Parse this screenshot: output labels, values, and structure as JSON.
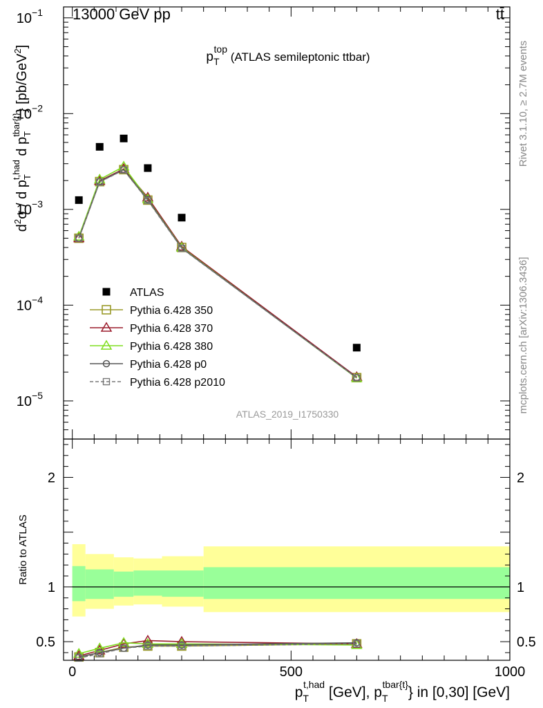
{
  "header": {
    "energy_label": "13000 GeV pp",
    "process_label": "tt̄"
  },
  "side_labels": {
    "rivet": "Rivet 3.1.10, ≥ 2.7M events",
    "mcplots": "mcplots.cern.ch [arXiv:1306.3436]"
  },
  "chart_data": [
    {
      "type": "scatter",
      "panel": "main",
      "title_main": "p",
      "title_sub": "T",
      "title_sup": "top",
      "title_rest": " (ATLAS semileptonic ttbar)",
      "analysis_id": "ATLAS_2019_I1750330",
      "ylabel": "d²σ / d p_T^{t,had} d p_T^{tbar{t}} [pb/GeV²]",
      "yscale": "log",
      "ylim": [
        4e-06,
        0.13
      ],
      "xlim": [
        -20,
        1000
      ],
      "ytick_labels": [
        {
          "value": 1e-05,
          "mant": "10",
          "exp": "−5"
        },
        {
          "value": 0.0001,
          "mant": "10",
          "exp": "−4"
        },
        {
          "value": 0.001,
          "mant": "10",
          "exp": "−3"
        },
        {
          "value": 0.01,
          "mant": "10",
          "exp": "−2"
        },
        {
          "value": 0.1,
          "mant": "10",
          "exp": "−1"
        }
      ],
      "legend_placement": "center-left",
      "x": [
        15,
        62.5,
        117.5,
        172.5,
        250,
        650
      ],
      "series": [
        {
          "name": "ATLAS",
          "color": "#000000",
          "marker": "filled-square",
          "values": [
            0.00125,
            0.0045,
            0.0055,
            0.0027,
            0.00082,
            3.6e-05
          ]
        },
        {
          "name": "Pythia 6.428 350",
          "color": "#9a9a2a",
          "marker": "open-square",
          "values": [
            0.0005,
            0.00195,
            0.0026,
            0.00125,
            0.0004,
            1.75e-05
          ]
        },
        {
          "name": "Pythia 6.428 370",
          "color": "#9b1c2c",
          "marker": "open-triangle",
          "values": [
            0.0005,
            0.00198,
            0.00265,
            0.00133,
            0.00041,
            1.78e-05
          ]
        },
        {
          "name": "Pythia 6.428 380",
          "color": "#7fdd1e",
          "marker": "open-triangle",
          "values": [
            0.00052,
            0.00205,
            0.0028,
            0.00128,
            0.0004,
            1.73e-05
          ]
        },
        {
          "name": "Pythia 6.428 p0",
          "color": "#555555",
          "marker": "open-circle",
          "values": [
            0.0005,
            0.00195,
            0.0026,
            0.00127,
            0.000395,
            1.75e-05
          ]
        },
        {
          "name": "Pythia 6.428 p2010",
          "color": "#777777",
          "marker": "open-square-small",
          "dashed": true,
          "values": [
            0.0005,
            0.00193,
            0.00258,
            0.00124,
            0.000392,
            1.74e-05
          ]
        }
      ]
    },
    {
      "type": "line",
      "panel": "ratio",
      "ylabel": "Ratio to ATLAS",
      "xlabel": "p_T^{t,had} [GeV], p_T^{tbar{t}} in [0,30] [GeV]",
      "xlim": [
        -20,
        1000
      ],
      "ylim": [
        0.33,
        2.35
      ],
      "xtick_labels": [
        {
          "value": 0,
          "label": "0"
        },
        {
          "value": 500,
          "label": "500"
        },
        {
          "value": 1000,
          "label": "1000"
        }
      ],
      "ytick_labels": [
        {
          "value": 0.5,
          "label": "0.5"
        },
        {
          "value": 1,
          "label": "1"
        },
        {
          "value": 2,
          "label": "2"
        }
      ],
      "band_edges": [
        0,
        30,
        95,
        140,
        205,
        300,
        1000
      ],
      "band_stat_low": [
        0.87,
        0.89,
        0.91,
        0.92,
        0.91,
        0.89
      ],
      "band_stat_high": [
        1.19,
        1.16,
        1.14,
        1.15,
        1.15,
        1.18
      ],
      "band_total_low": [
        0.73,
        0.8,
        0.83,
        0.84,
        0.82,
        0.77
      ],
      "band_total_high": [
        1.39,
        1.3,
        1.27,
        1.26,
        1.28,
        1.37
      ],
      "band_stat_color": "#99ff99",
      "band_total_color": "#ffff99",
      "x": [
        15,
        62.5,
        117.5,
        172.5,
        250,
        650
      ],
      "series": [
        {
          "name": "Pythia 6.428 350",
          "values": [
            0.36,
            0.4,
            0.45,
            0.46,
            0.46,
            0.48
          ]
        },
        {
          "name": "Pythia 6.428 370",
          "values": [
            0.37,
            0.42,
            0.48,
            0.51,
            0.5,
            0.48
          ]
        },
        {
          "name": "Pythia 6.428 380",
          "values": [
            0.39,
            0.44,
            0.49,
            0.48,
            0.48,
            0.47
          ]
        },
        {
          "name": "Pythia 6.428 p0",
          "values": [
            0.36,
            0.4,
            0.44,
            0.47,
            0.47,
            0.49
          ]
        },
        {
          "name": "Pythia 6.428 p2010",
          "values": [
            0.35,
            0.39,
            0.44,
            0.46,
            0.46,
            0.48
          ]
        }
      ]
    }
  ]
}
